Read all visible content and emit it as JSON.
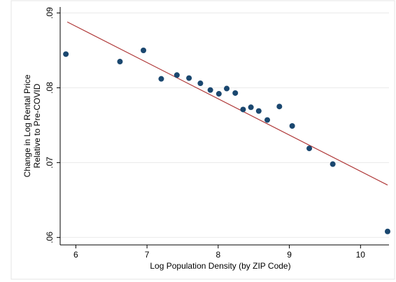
{
  "chart_data": {
    "type": "scatter",
    "xlabel": "Log Population Density (by ZIP Code)",
    "ylabel": [
      "Change in Log Rental Price",
      "Relative to Pre-COVID"
    ],
    "x": [
      5.86,
      6.62,
      6.95,
      7.2,
      7.42,
      7.59,
      7.75,
      7.89,
      8.01,
      8.12,
      8.24,
      8.35,
      8.46,
      8.57,
      8.69,
      8.86,
      9.04,
      9.28,
      9.61,
      10.38
    ],
    "series": [
      {
        "color": "#1a476f",
        "values": [
          0.0845,
          0.0835,
          0.085,
          0.0812,
          0.0817,
          0.0813,
          0.0806,
          0.0797,
          0.0792,
          0.0799,
          0.0793,
          0.0771,
          0.0774,
          0.0769,
          0.0757,
          0.0775,
          0.0749,
          0.0719,
          0.0698,
          0.0608
        ]
      }
    ],
    "fit": {
      "x": [
        5.88,
        10.38
      ],
      "y": [
        0.0888,
        0.067
      ],
      "color": "#b03a3a"
    },
    "xlim": [
      5.78,
      10.4
    ],
    "ylim": [
      0.059,
      0.0908
    ],
    "xticks": [
      6,
      7,
      8,
      9,
      10
    ],
    "yticks": [
      {
        "value": 0.06,
        "label": ".06"
      },
      {
        "value": 0.07,
        "label": ".07"
      },
      {
        "value": 0.08,
        "label": ".08"
      },
      {
        "value": 0.09,
        "label": ".09"
      }
    ],
    "grid": true
  }
}
